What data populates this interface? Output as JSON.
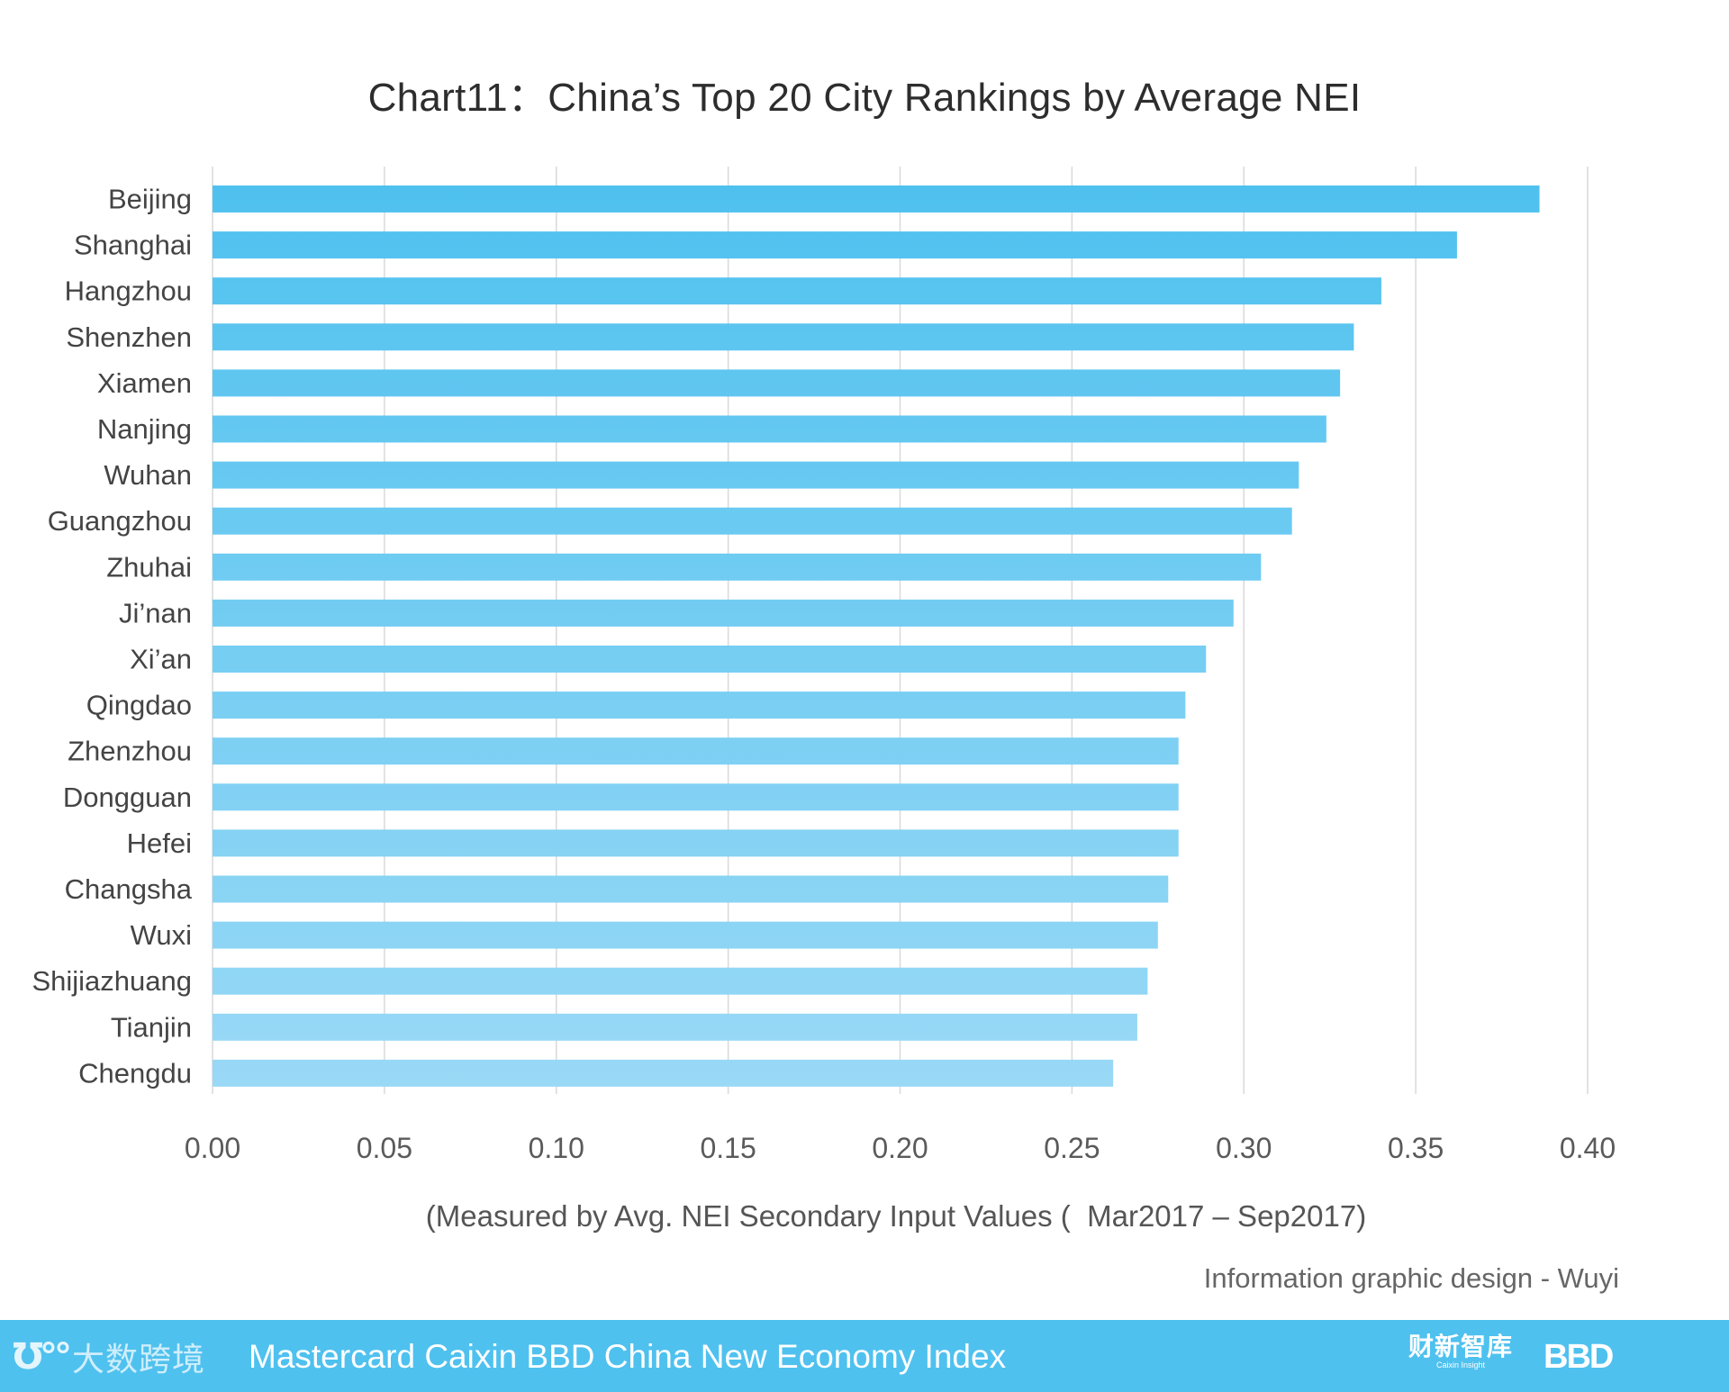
{
  "chart_data": {
    "type": "bar",
    "orientation": "horizontal",
    "title": "Chart11：China’s Top 20 City Rankings by Average NEI",
    "categories": [
      "Beijing",
      "Shanghai",
      "Hangzhou",
      "Shenzhen",
      "Xiamen",
      "Nanjing",
      "Wuhan",
      "Guangzhou",
      "Zhuhai",
      "Ji’nan",
      "Xi’an",
      "Qingdao",
      "Zhenzhou",
      "Dongguan",
      "Hefei",
      "Changsha",
      "Wuxi",
      "Shijiazhuang",
      "Tianjin",
      "Chengdu"
    ],
    "values": [
      0.386,
      0.362,
      0.34,
      0.332,
      0.328,
      0.324,
      0.316,
      0.314,
      0.305,
      0.297,
      0.289,
      0.283,
      0.281,
      0.281,
      0.281,
      0.278,
      0.275,
      0.272,
      0.269,
      0.262
    ],
    "xlim": [
      0,
      0.4
    ],
    "xticks": [
      0,
      0.05,
      0.1,
      0.15,
      0.2,
      0.25,
      0.3,
      0.35,
      0.4
    ],
    "xtick_labels": [
      "0.00",
      "0.05",
      "0.10",
      "0.15",
      "0.20",
      "0.25",
      "0.30",
      "0.35",
      "0.40"
    ],
    "xlabel": "(Measured by Avg. NEI Secondary Input Values (  Mar2017 – Sep2017)",
    "ylabel": "",
    "grid": "vertical",
    "legend": "none",
    "bar_colors": {
      "start": "#4fc1ef",
      "end": "#9ad9f6"
    },
    "gridline_color": "#d9d9d9"
  },
  "credit": "Information graphic design - Wuyi",
  "footer": {
    "logo_mark": "℧°°",
    "logo_text": "大数跨境",
    "title": "Mastercard Caixin BBD China New Economy Index",
    "caixin_logo_cn": "财新智库",
    "caixin_logo_en": "Caixin Insight",
    "bbd_logo": "BBD",
    "background_color": "#4fc1ef"
  }
}
